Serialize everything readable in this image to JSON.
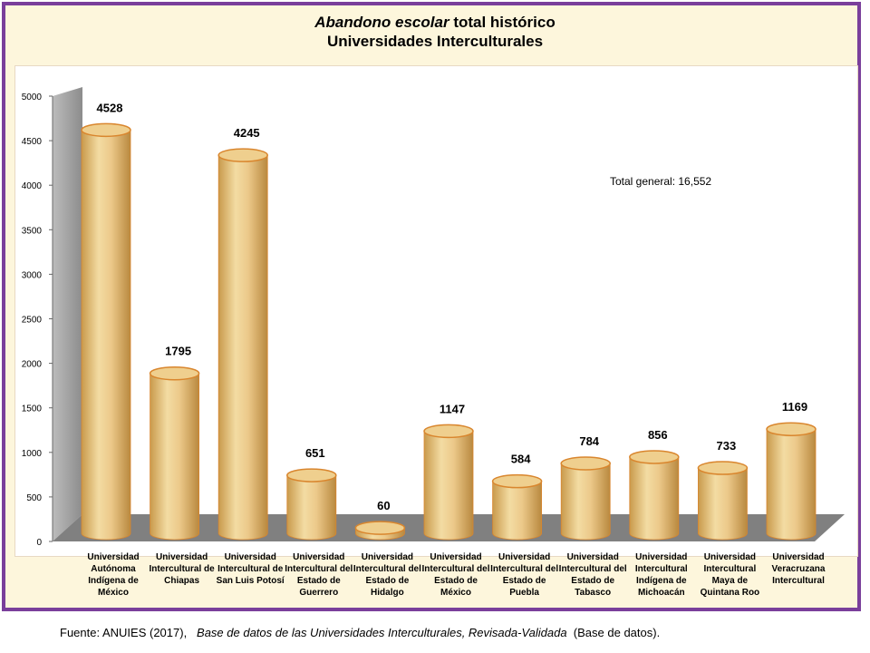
{
  "chart_data": {
    "type": "bar",
    "title_line1_italic": "Abandono escolar",
    "title_line1_rest": "total histórico",
    "title_line2": "Universidades Interculturales",
    "categories": [
      "Universidad Autónoma Indígena de México",
      "Universidad Intercultural de Chiapas",
      "Universidad Intercultural de San Luis Potosí",
      "Universidad Intercultural del Estado de Guerrero",
      "Universidad Intercultural del Estado de Hidalgo",
      "Universidad Intercultural del Estado de México",
      "Universidad Intercultural del Estado de Puebla",
      "Universidad Intercultural del Estado de Tabasco",
      "Universidad Intercultural Indígena de Michoacán",
      "Universidad Intercultural Maya de Quintana Roo",
      "Universidad Veracruzana Intercultural"
    ],
    "values": [
      4528,
      1795,
      4245,
      651,
      60,
      1147,
      584,
      784,
      856,
      733,
      1169
    ],
    "yticks": [
      0,
      500,
      1000,
      1500,
      2000,
      2500,
      3000,
      3500,
      4000,
      4500,
      5000
    ],
    "ylim": [
      0,
      5000
    ],
    "annotation": "Total general: 16,552",
    "grid": false,
    "legend": "none",
    "style": "3d-cylinder",
    "colors": {
      "bar": "#e8c47e",
      "bar_edge": "#d9862e",
      "wall": "#9a9a9a",
      "floor": "#808080",
      "frame": "#7a3f9b"
    }
  },
  "source": {
    "prefix": "Fuente: ANUIES (2017),",
    "italic": "Base de datos de las Universidades Interculturales, Revisada-Validada",
    "suffix": "(Base de datos)."
  }
}
